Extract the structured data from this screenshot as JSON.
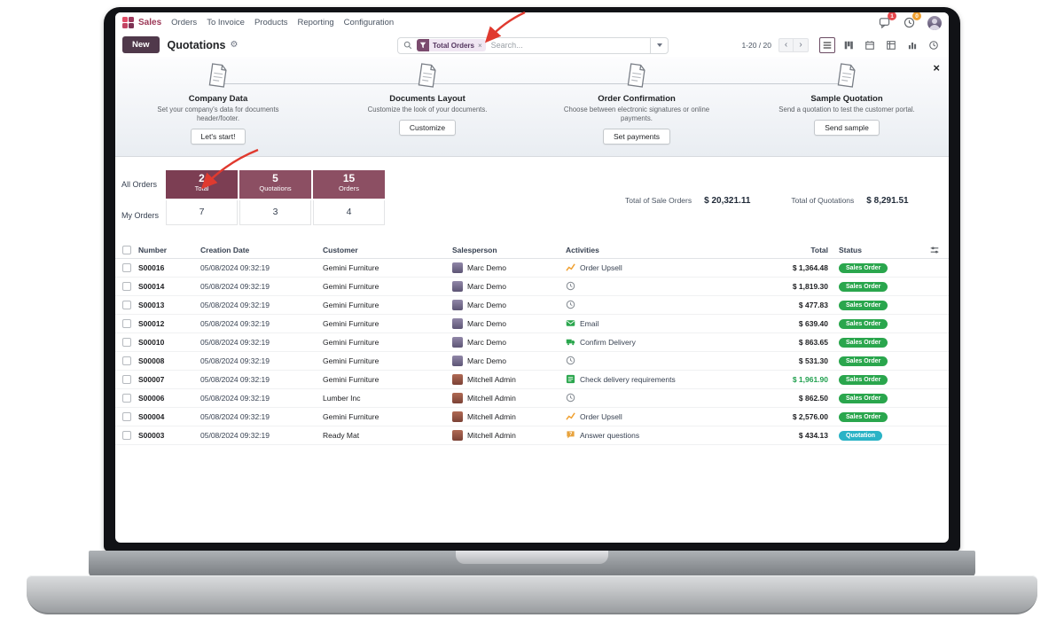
{
  "navbar": {
    "app_name": "Sales",
    "menus": [
      "Orders",
      "To Invoice",
      "Products",
      "Reporting",
      "Configuration"
    ],
    "message_badge": "1",
    "activity_badge": "0"
  },
  "control": {
    "new_label": "New",
    "title": "Quotations",
    "search": {
      "filter_tag": "Total Orders",
      "remove": "×",
      "placeholder": "Search..."
    },
    "pager": "1-20 / 20",
    "pager_prev": "‹",
    "pager_next": "›"
  },
  "onboarding": {
    "close": "×",
    "steps": [
      {
        "title": "Company Data",
        "description": "Set your company's data for documents header/footer.",
        "button": "Let's start!"
      },
      {
        "title": "Documents Layout",
        "description": "Customize the look of your documents.",
        "button": "Customize"
      },
      {
        "title": "Order Confirmation",
        "description": "Choose between electronic signatures or online payments.",
        "button": "Set payments"
      },
      {
        "title": "Sample Quotation",
        "description": "Send a quotation to test the customer portal.",
        "button": "Send sample"
      }
    ]
  },
  "dashboard": {
    "row_label_all": "All Orders",
    "row_label_my": "My Orders",
    "tiles": [
      {
        "count": "2",
        "label": "Total",
        "my_count": "7"
      },
      {
        "count": "5",
        "label": "Quotations",
        "my_count": "3"
      },
      {
        "count": "15",
        "label": "Orders",
        "my_count": "4"
      }
    ],
    "totals": [
      {
        "label": "Total of Sale Orders",
        "value": "$ 20,321.11"
      },
      {
        "label": "Total of Quotations",
        "value": "$ 8,291.51"
      }
    ]
  },
  "table": {
    "columns": [
      "Number",
      "Creation Date",
      "Customer",
      "Salesperson",
      "Activities",
      "Total",
      "Status"
    ],
    "rows": [
      {
        "number": "S00016",
        "date": "05/08/2024 09:32:19",
        "customer": "Gemini Furniture",
        "salesperson": "Marc Demo",
        "avatar": "marc",
        "activity_icon": "chart",
        "activity_label": "Order Upsell",
        "total": "$ 1,364.48",
        "total_green": false,
        "status": "Sales Order",
        "status_type": "success"
      },
      {
        "number": "S00014",
        "date": "05/08/2024 09:32:19",
        "customer": "Gemini Furniture",
        "salesperson": "Marc Demo",
        "avatar": "marc",
        "activity_icon": "clock",
        "activity_label": "",
        "total": "$ 1,819.30",
        "total_green": false,
        "status": "Sales Order",
        "status_type": "success"
      },
      {
        "number": "S00013",
        "date": "05/08/2024 09:32:19",
        "customer": "Gemini Furniture",
        "salesperson": "Marc Demo",
        "avatar": "marc",
        "activity_icon": "clock",
        "activity_label": "",
        "total": "$ 477.83",
        "total_green": false,
        "status": "Sales Order",
        "status_type": "success"
      },
      {
        "number": "S00012",
        "date": "05/08/2024 09:32:19",
        "customer": "Gemini Furniture",
        "salesperson": "Marc Demo",
        "avatar": "marc",
        "activity_icon": "email",
        "activity_label": "Email",
        "total": "$ 639.40",
        "total_green": false,
        "status": "Sales Order",
        "status_type": "success"
      },
      {
        "number": "S00010",
        "date": "05/08/2024 09:32:19",
        "customer": "Gemini Furniture",
        "salesperson": "Marc Demo",
        "avatar": "marc",
        "activity_icon": "delivery",
        "activity_label": "Confirm Delivery",
        "total": "$ 863.65",
        "total_green": false,
        "status": "Sales Order",
        "status_type": "success"
      },
      {
        "number": "S00008",
        "date": "05/08/2024 09:32:19",
        "customer": "Gemini Furniture",
        "salesperson": "Marc Demo",
        "avatar": "marc",
        "activity_icon": "clock",
        "activity_label": "",
        "total": "$ 531.30",
        "total_green": false,
        "status": "Sales Order",
        "status_type": "success"
      },
      {
        "number": "S00007",
        "date": "05/08/2024 09:32:19",
        "customer": "Gemini Furniture",
        "salesperson": "Mitchell Admin",
        "avatar": "mitchell",
        "activity_icon": "checklist",
        "activity_label": "Check delivery requirements",
        "total": "$ 1,961.90",
        "total_green": true,
        "status": "Sales Order",
        "status_type": "success"
      },
      {
        "number": "S00006",
        "date": "05/08/2024 09:32:19",
        "customer": "Lumber Inc",
        "salesperson": "Mitchell Admin",
        "avatar": "mitchell",
        "activity_icon": "clock",
        "activity_label": "",
        "total": "$ 862.50",
        "total_green": false,
        "status": "Sales Order",
        "status_type": "success"
      },
      {
        "number": "S00004",
        "date": "05/08/2024 09:32:19",
        "customer": "Gemini Furniture",
        "salesperson": "Mitchell Admin",
        "avatar": "mitchell",
        "activity_icon": "chart",
        "activity_label": "Order Upsell",
        "total": "$ 2,576.00",
        "total_green": false,
        "status": "Sales Order",
        "status_type": "success"
      },
      {
        "number": "S00003",
        "date": "05/08/2024 09:32:19",
        "customer": "Ready Mat",
        "salesperson": "Mitchell Admin",
        "avatar": "mitchell",
        "activity_icon": "question",
        "activity_label": "Answer questions",
        "total": "$ 434.13",
        "total_green": false,
        "status": "Quotation",
        "status_type": "info"
      }
    ]
  }
}
